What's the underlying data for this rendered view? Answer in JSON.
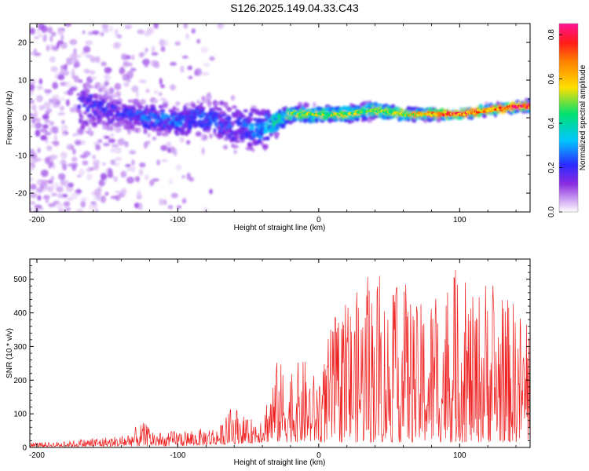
{
  "title": "S126.2025.149.04.33.C43",
  "chart_data": [
    {
      "type": "heatmap",
      "xlabel": "Height of straight line (km)",
      "ylabel": "Frequency (Hz)",
      "xlim": [
        -205,
        150
      ],
      "ylim": [
        -25,
        25
      ],
      "xticks": [
        -200,
        -100,
        0,
        100
      ],
      "yticks": [
        -20,
        -10,
        0,
        10,
        20
      ],
      "grid": false,
      "colorbar": {
        "label": "Normalized spectral amplitude",
        "range": [
          0.0,
          0.85
        ],
        "ticks": [
          0.0,
          0.2,
          0.4,
          0.6,
          0.8
        ],
        "colormap": "rainbow (violet to magenta)"
      },
      "ridge": {
        "x": [
          -200,
          -160,
          -140,
          -120,
          -100,
          -80,
          -60,
          -40,
          -20,
          0,
          20,
          40,
          60,
          80,
          100,
          120,
          140,
          150
        ],
        "freq_center": [
          2,
          3,
          1,
          0,
          -1,
          0,
          -2,
          -3,
          1,
          1,
          1,
          2,
          1,
          1,
          1,
          2,
          3,
          3
        ],
        "freq_spread": [
          22,
          9,
          6,
          6,
          6,
          7,
          10,
          8,
          3,
          3,
          3,
          3,
          2,
          2,
          2,
          2,
          2,
          2
        ],
        "amplitude": [
          0.05,
          0.2,
          0.2,
          0.25,
          0.25,
          0.25,
          0.2,
          0.3,
          0.5,
          0.55,
          0.55,
          0.5,
          0.6,
          0.7,
          0.8,
          0.7,
          0.85,
          0.8
        ]
      }
    },
    {
      "type": "line",
      "xlabel": "Height of straight line (km)",
      "ylabel": "SNR (10 * v/v)",
      "xlim": [
        -205,
        150
      ],
      "ylim": [
        0,
        560
      ],
      "xticks": [
        -200,
        -100,
        0,
        100
      ],
      "yticks": [
        0,
        100,
        200,
        300,
        400,
        500
      ],
      "grid": false,
      "series": [
        {
          "color": "#ee2222",
          "envelope_x": [
            -205,
            -180,
            -160,
            -140,
            -125,
            -110,
            -100,
            -90,
            -80,
            -70,
            -60,
            -50,
            -40,
            -30,
            -20,
            -10,
            0,
            10,
            20,
            30,
            40,
            50,
            60,
            70,
            80,
            90,
            100,
            110,
            120,
            130,
            140,
            150
          ],
          "envelope_y": [
            15,
            18,
            30,
            35,
            75,
            40,
            55,
            50,
            60,
            65,
            130,
            80,
            110,
            260,
            240,
            265,
            200,
            390,
            430,
            480,
            540,
            450,
            510,
            420,
            470,
            480,
            555,
            440,
            535,
            450,
            440,
            360
          ],
          "floor_y": [
            2,
            2,
            2,
            3,
            3,
            4,
            4,
            5,
            6,
            8,
            10,
            12,
            15,
            15,
            15,
            15,
            15,
            15,
            15,
            15,
            15,
            15,
            15,
            15,
            15,
            15,
            15,
            15,
            15,
            15,
            15,
            15
          ]
        }
      ]
    }
  ]
}
